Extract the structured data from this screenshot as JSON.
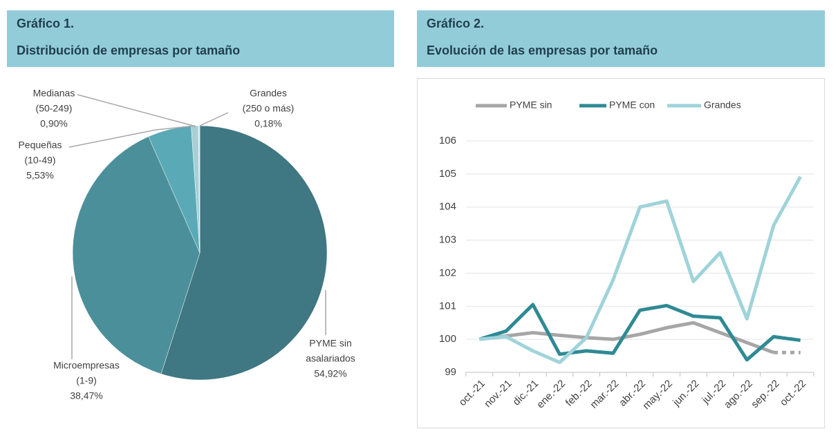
{
  "chart_data": [
    {
      "type": "pie",
      "label": "Gráfico 1.",
      "title": "Distribución de empresas por tamaño",
      "categories": [
        [
          "PYME sin",
          "asalariados"
        ],
        [
          "Microempresas",
          "(1-9)"
        ],
        [
          "Pequeñas",
          "(10-49)"
        ],
        [
          "Medianas",
          "(50-249)"
        ],
        [
          "Grandes",
          "(250 o más)"
        ]
      ],
      "values": [
        54.92,
        38.47,
        5.53,
        0.9,
        0.18
      ],
      "value_labels": [
        "54,92%",
        "38,47%",
        "5,53%",
        "0,90%",
        "0,18%"
      ],
      "colors": [
        "#3f7782",
        "#4b8f9a",
        "#5aa9b6",
        "#a8cfd6",
        "#d3e6ea"
      ]
    },
    {
      "type": "line",
      "label": "Gráfico 2.",
      "title": "Evolución de las empresas por tamaño",
      "categories": [
        "oct.-21",
        "nov.-21",
        "dic.-21",
        "ene.-22",
        "feb.-22",
        "mar.-22",
        "abr.-22",
        "may.-22",
        "jun.-22",
        "jul.-22",
        "ago.-22",
        "sep.-22",
        "oct.-22"
      ],
      "series": [
        {
          "name": "PYME sin",
          "color": "#a6a6a6",
          "dash_from_index": 11,
          "values": [
            100,
            100.1,
            100.2,
            100.12,
            100.05,
            100.0,
            100.15,
            100.35,
            100.5,
            100.2,
            99.9,
            99.6,
            99.6
          ]
        },
        {
          "name": "PYME con",
          "color": "#2e8a94",
          "values": [
            100,
            100.25,
            101.05,
            99.55,
            99.65,
            99.58,
            100.88,
            101.02,
            100.7,
            100.65,
            99.38,
            100.08,
            99.97
          ]
        },
        {
          "name": "Grandes",
          "color": "#9fd3da",
          "values": [
            100,
            100.08,
            99.65,
            99.3,
            100.05,
            101.8,
            104.0,
            104.18,
            101.75,
            102.62,
            100.62,
            103.45,
            104.92
          ]
        }
      ],
      "ylim": [
        99,
        106
      ],
      "yticks": [
        99,
        100,
        101,
        102,
        103,
        104,
        105,
        106
      ],
      "grid": true,
      "legend": "top"
    }
  ]
}
